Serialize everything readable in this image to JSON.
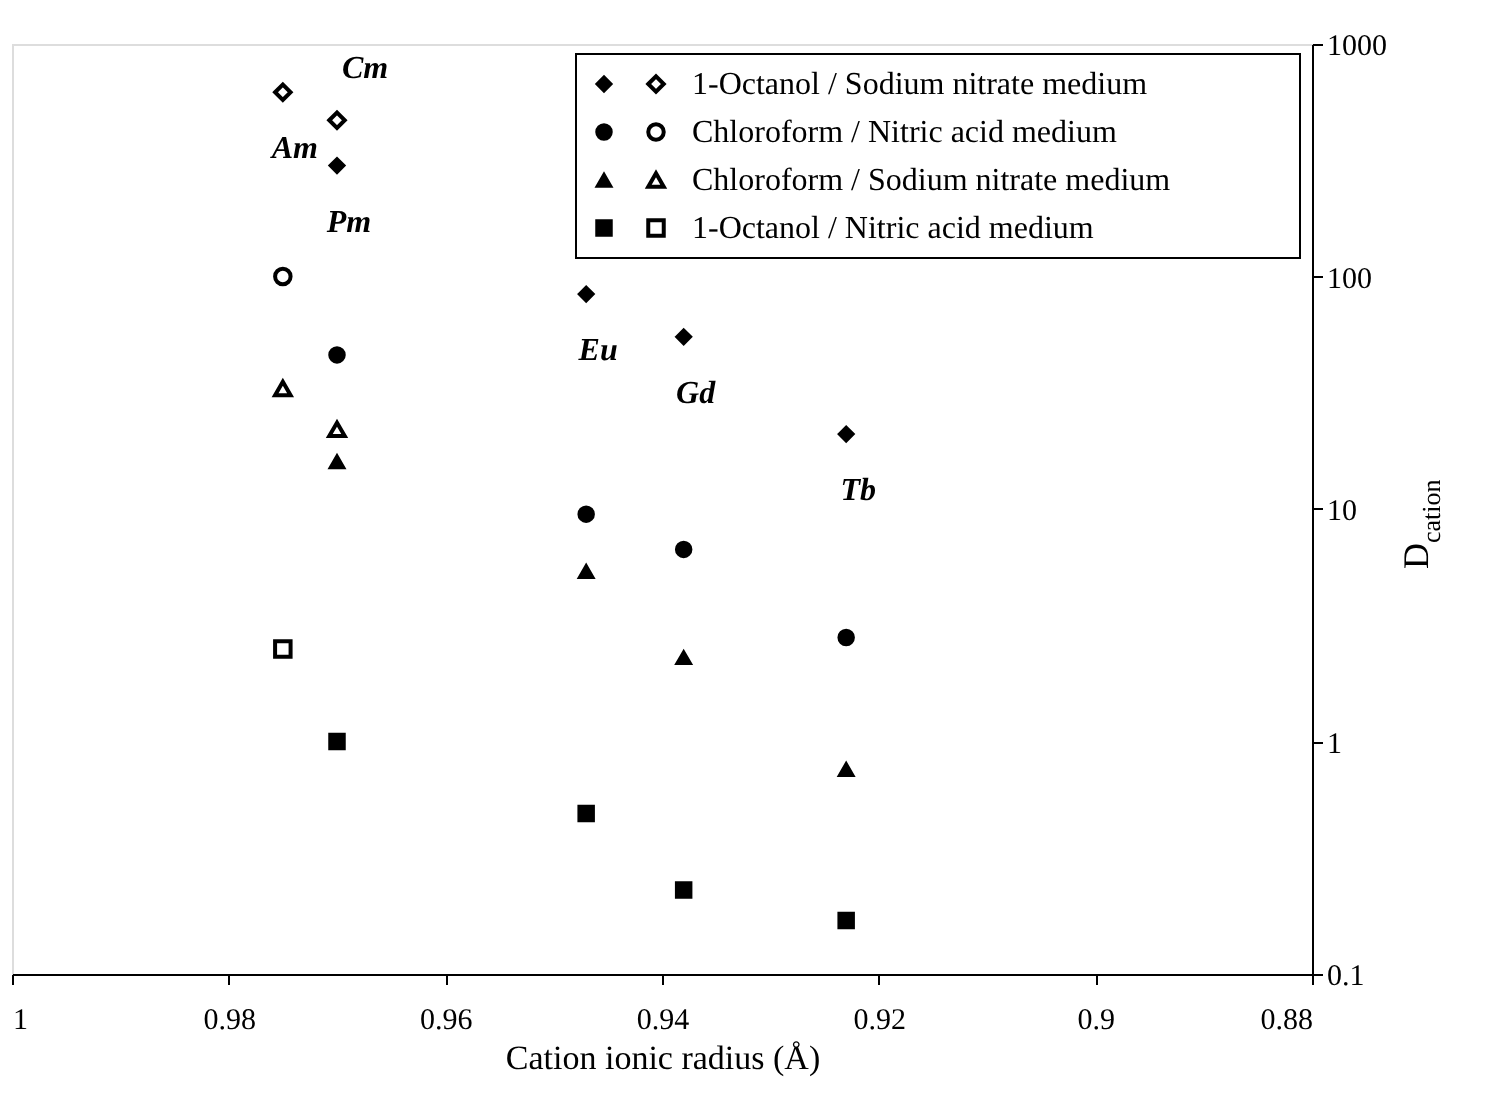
{
  "chart_data": {
    "type": "scatter",
    "xlabel": "Cation ionic radius (Å)",
    "ylabel": "D$_{cation}$",
    "xlim": [
      1,
      0.88
    ],
    "xticks": [
      1,
      0.98,
      0.96,
      0.94,
      0.92,
      0.9,
      0.88
    ],
    "ylim": [
      0.1,
      1000
    ],
    "yticks": [
      0.1,
      1,
      10,
      100,
      1000
    ],
    "log": "y",
    "grid": false,
    "legend": "top right",
    "series": [
      {
        "name": "1-Octanol / Sodium nitrate medium",
        "color": "#000000",
        "marker": "diamond",
        "x": [
          0.975,
          0.97,
          0.97,
          0.947,
          0.938,
          0.923
        ],
        "values": [
          620,
          470,
          300,
          84,
          55,
          21
        ],
        "colors": [
          "#ffffff",
          "#ffffff",
          "#000000",
          "#000000",
          "#000000",
          "#000000"
        ]
      },
      {
        "name": "Chloroform / Nitric acid medium",
        "color": "#000000",
        "marker": "circle",
        "x": [
          0.975,
          0.97,
          0.947,
          0.938,
          0.923
        ],
        "values": [
          100,
          46,
          9.5,
          6.7,
          2.8
        ],
        "colors": [
          "#ffffff",
          "#000000",
          "#000000",
          "#000000",
          "#000000"
        ]
      },
      {
        "name": "Chloroform / Sodium nitrate medium",
        "color": "#000000",
        "marker": "triangle",
        "x": [
          0.975,
          0.97,
          0.97,
          0.947,
          0.938,
          0.923
        ],
        "values": [
          33,
          22,
          16,
          5.4,
          2.3,
          0.76
        ],
        "colors": [
          "#ffffff",
          "#ffffff",
          "#000000",
          "#000000",
          "#000000",
          "#000000"
        ]
      },
      {
        "name": "1-Octanol / Nitric acid medium",
        "color": "#000000",
        "marker": "square",
        "x": [
          0.975,
          0.97,
          0.947,
          0.938,
          0.923
        ],
        "values": [
          2.5,
          1.0,
          0.49,
          0.23,
          0.17
        ],
        "colors": [
          "#ffffff",
          "#000000",
          "#000000",
          "#000000",
          "#000000"
        ]
      }
    ],
    "annotations": [
      {
        "text": "Cm",
        "x": 0.97,
        "y": 470
      },
      {
        "text": "Am",
        "x": 0.975,
        "y": 620
      },
      {
        "text": "Pm",
        "x": 0.97,
        "y": 300
      },
      {
        "text": "Eu",
        "x": 0.947,
        "y": 84
      },
      {
        "text": "Gd",
        "x": 0.938,
        "y": 55
      },
      {
        "text": "Tb",
        "x": 0.923,
        "y": 21
      }
    ]
  }
}
